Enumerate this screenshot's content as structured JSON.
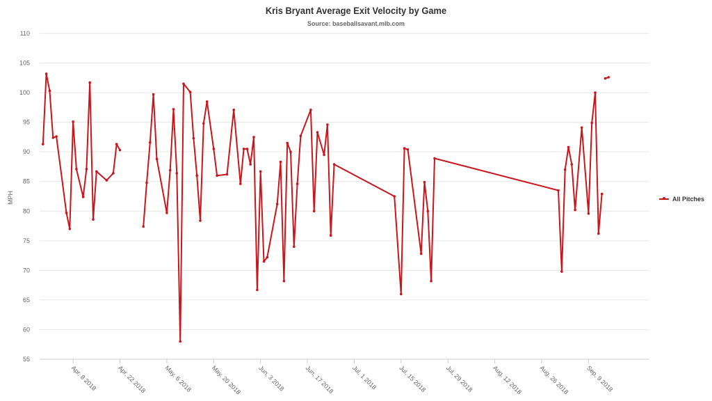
{
  "chart_data": {
    "type": "line",
    "title": "Kris Bryant Average Exit Velocity by Game",
    "subtitle": "Source: baseballsavant.mlb.com",
    "ylabel": "MPH",
    "xlabel": "",
    "ylim": [
      55,
      110
    ],
    "yticks": [
      55,
      60,
      65,
      70,
      75,
      80,
      85,
      90,
      95,
      100,
      105,
      110
    ],
    "xlim": [
      "2018-03-29",
      "2018-09-27"
    ],
    "xticks": [
      {
        "date": "2018-04-08",
        "label": "Apr, 8 2018"
      },
      {
        "date": "2018-04-22",
        "label": "Apr, 22 2018"
      },
      {
        "date": "2018-05-06",
        "label": "May, 6 2018"
      },
      {
        "date": "2018-05-20",
        "label": "May, 20 2018"
      },
      {
        "date": "2018-06-03",
        "label": "Jun, 3 2018"
      },
      {
        "date": "2018-06-17",
        "label": "Jun, 17 2018"
      },
      {
        "date": "2018-07-01",
        "label": "Jul, 1 2018"
      },
      {
        "date": "2018-07-15",
        "label": "Jul, 15 2018"
      },
      {
        "date": "2018-07-29",
        "label": "Jul, 29 2018"
      },
      {
        "date": "2018-08-12",
        "label": "Aug, 12 2018"
      },
      {
        "date": "2018-08-26",
        "label": "Aug, 26 2018"
      },
      {
        "date": "2018-09-09",
        "label": "Sep, 9 2018"
      }
    ],
    "grid": true,
    "legend_position": "right",
    "color": "#c8161d",
    "series": [
      {
        "name": "All Pitches",
        "points": [
          [
            "2018-03-30",
            91.3
          ],
          [
            "2018-03-31",
            103.2
          ],
          [
            "2018-04-01",
            100.3
          ],
          [
            "2018-04-02",
            92.4
          ],
          [
            "2018-04-03",
            92.6
          ],
          [
            "2018-04-06",
            79.7
          ],
          [
            "2018-04-07",
            77.0
          ],
          [
            "2018-04-08",
            95.1
          ],
          [
            "2018-04-09",
            87.1
          ],
          [
            "2018-04-11",
            82.4
          ],
          [
            "2018-04-12",
            87.1
          ],
          [
            "2018-04-13",
            101.7
          ],
          [
            "2018-04-14",
            78.6
          ],
          [
            "2018-04-15",
            86.7
          ],
          [
            "2018-04-18",
            85.2
          ],
          [
            "2018-04-20",
            86.4
          ],
          [
            "2018-04-21",
            91.3
          ],
          [
            "2018-04-22",
            90.3
          ],
          null,
          [
            "2018-04-29",
            77.4
          ],
          [
            "2018-04-30",
            84.8
          ],
          [
            "2018-05-01",
            91.6
          ],
          [
            "2018-05-02",
            99.7
          ],
          [
            "2018-05-03",
            88.8
          ],
          [
            "2018-05-06",
            79.7
          ],
          [
            "2018-05-07",
            86.9
          ],
          [
            "2018-05-08",
            97.2
          ],
          [
            "2018-05-09",
            86.4
          ],
          [
            "2018-05-10",
            58.0
          ],
          [
            "2018-05-11",
            101.5
          ],
          [
            "2018-05-13",
            100.1
          ],
          [
            "2018-05-14",
            92.3
          ],
          [
            "2018-05-15",
            86.0
          ],
          [
            "2018-05-16",
            78.4
          ],
          [
            "2018-05-17",
            94.8
          ],
          [
            "2018-05-18",
            98.5
          ],
          [
            "2018-05-20",
            90.5
          ],
          [
            "2018-05-21",
            86.0
          ],
          [
            "2018-05-24",
            86.2
          ],
          [
            "2018-05-26",
            97.1
          ],
          [
            "2018-05-28",
            84.6
          ],
          [
            "2018-05-29",
            90.5
          ],
          [
            "2018-05-30",
            90.5
          ],
          [
            "2018-05-31",
            87.9
          ],
          [
            "2018-06-01",
            92.5
          ],
          [
            "2018-06-02",
            66.7
          ],
          [
            "2018-06-03",
            86.7
          ],
          [
            "2018-06-04",
            71.5
          ],
          [
            "2018-06-05",
            72.2
          ],
          [
            "2018-06-08",
            81.2
          ],
          [
            "2018-06-09",
            88.3
          ],
          [
            "2018-06-10",
            68.2
          ],
          [
            "2018-06-11",
            91.5
          ],
          [
            "2018-06-12",
            90.0
          ],
          [
            "2018-06-13",
            74.0
          ],
          [
            "2018-06-14",
            84.6
          ],
          [
            "2018-06-15",
            92.7
          ],
          [
            "2018-06-18",
            97.1
          ],
          [
            "2018-06-19",
            80.0
          ],
          [
            "2018-06-20",
            93.3
          ],
          [
            "2018-06-22",
            89.5
          ],
          [
            "2018-06-23",
            94.6
          ],
          [
            "2018-06-24",
            75.9
          ],
          [
            "2018-06-25",
            87.9
          ],
          [
            "2018-07-13",
            82.5
          ],
          [
            "2018-07-15",
            66.0
          ],
          [
            "2018-07-16",
            90.6
          ],
          [
            "2018-07-17",
            90.4
          ],
          [
            "2018-07-21",
            72.8
          ],
          [
            "2018-07-22",
            84.9
          ],
          [
            "2018-07-23",
            80.0
          ],
          [
            "2018-07-24",
            68.2
          ],
          [
            "2018-07-25",
            88.9
          ],
          [
            "2018-08-31",
            83.5
          ],
          [
            "2018-09-01",
            69.8
          ],
          [
            "2018-09-02",
            87.0
          ],
          [
            "2018-09-03",
            90.8
          ],
          [
            "2018-09-04",
            87.9
          ],
          [
            "2018-09-05",
            80.2
          ],
          [
            "2018-09-07",
            94.1
          ],
          [
            "2018-09-09",
            79.6
          ],
          [
            "2018-09-10",
            94.9
          ],
          [
            "2018-09-11",
            100.0
          ],
          [
            "2018-09-12",
            76.2
          ],
          [
            "2018-09-13",
            82.9
          ],
          null,
          [
            "2018-09-14",
            102.4
          ],
          [
            "2018-09-15",
            102.6
          ]
        ]
      }
    ]
  }
}
